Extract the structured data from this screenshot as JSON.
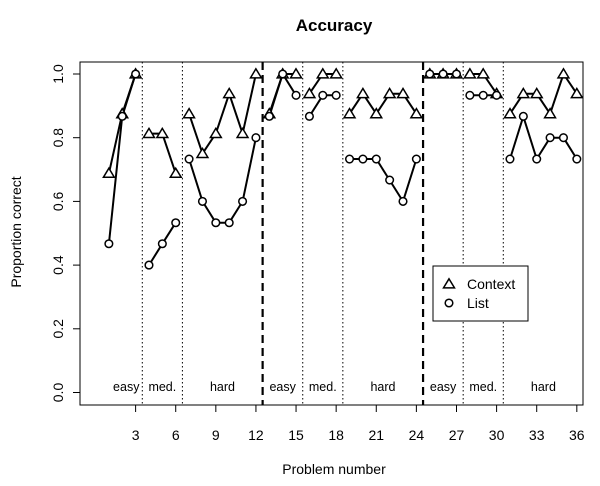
{
  "chart_data": {
    "type": "line",
    "title": "Accuracy",
    "xlabel": "Problem number",
    "ylabel": "Proportion correct",
    "xlim": [
      0,
      37
    ],
    "ylim": [
      0,
      1
    ],
    "x_ticks": [
      3,
      6,
      9,
      12,
      15,
      18,
      21,
      24,
      27,
      30,
      33,
      36
    ],
    "y_ticks": [
      0.0,
      0.2,
      0.4,
      0.6,
      0.8,
      1.0
    ],
    "y_tick_labels": [
      "0.0",
      "0.2",
      "0.4",
      "0.6",
      "0.8",
      "1.0"
    ],
    "grid": false,
    "legend_position": "lower-right",
    "x": [
      1,
      2,
      3,
      4,
      5,
      6,
      7,
      8,
      9,
      10,
      11,
      12,
      13,
      14,
      15,
      16,
      17,
      18,
      19,
      20,
      21,
      22,
      23,
      24,
      25,
      26,
      27,
      28,
      29,
      30,
      31,
      32,
      33,
      34,
      35,
      36
    ],
    "series": [
      {
        "name": "Context",
        "marker": "triangle",
        "values": [
          0.688,
          0.875,
          1.0,
          0.813,
          0.813,
          0.688,
          0.875,
          0.75,
          0.813,
          0.938,
          0.813,
          1.0,
          0.875,
          1.0,
          1.0,
          0.938,
          1.0,
          1.0,
          0.875,
          0.938,
          0.875,
          0.938,
          0.938,
          0.875,
          1.0,
          1.0,
          1.0,
          1.0,
          1.0,
          0.938,
          0.875,
          0.938,
          0.938,
          0.875,
          1.0,
          0.938
        ]
      },
      {
        "name": "List",
        "marker": "circle",
        "values": [
          0.467,
          0.867,
          1.0,
          0.4,
          0.467,
          0.533,
          0.733,
          0.6,
          0.533,
          0.533,
          0.6,
          0.8,
          0.867,
          1.0,
          0.933,
          0.867,
          0.933,
          0.933,
          0.733,
          0.733,
          0.733,
          0.667,
          0.6,
          0.733,
          1.0,
          1.0,
          1.0,
          0.933,
          0.933,
          0.933,
          0.733,
          0.867,
          0.733,
          0.8,
          0.8,
          0.733
        ]
      }
    ],
    "blocks": [
      [
        1,
        3
      ],
      [
        4,
        6
      ],
      [
        7,
        12
      ],
      [
        13,
        15
      ],
      [
        16,
        18
      ],
      [
        19,
        24
      ],
      [
        25,
        27
      ],
      [
        28,
        30
      ],
      [
        31,
        36
      ]
    ],
    "dotted_separators": [
      3.5,
      6.5,
      15.5,
      18.5,
      27.5,
      30.5
    ],
    "dashed_separators": [
      12.5,
      24.5
    ],
    "segment_labels": [
      {
        "text": "easy",
        "x": 2.3
      },
      {
        "text": "med.",
        "x": 5.0
      },
      {
        "text": "hard",
        "x": 9.5
      },
      {
        "text": "easy",
        "x": 14.0
      },
      {
        "text": "med.",
        "x": 17.0
      },
      {
        "text": "hard",
        "x": 21.5
      },
      {
        "text": "easy",
        "x": 26.0
      },
      {
        "text": "med.",
        "x": 29.0
      },
      {
        "text": "hard",
        "x": 33.5
      }
    ]
  }
}
